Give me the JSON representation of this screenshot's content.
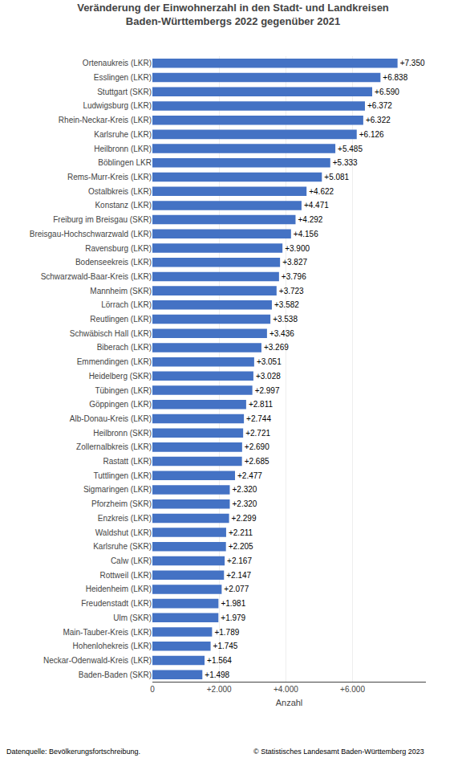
{
  "chart_data": {
    "type": "bar",
    "orientation": "horizontal",
    "title": "Veränderung der Einwohnerzahl in den Stadt- und Landkreisen\nBaden-Württembergs 2022 gegenüber 2021",
    "xlabel": "Anzahl",
    "categories": [
      "Ortenaukreis (LKR)",
      "Esslingen (LKR)",
      "Stuttgart (SKR)",
      "Ludwigsburg (LKR)",
      "Rhein-Neckar-Kreis (LKR)",
      "Karlsruhe (LKR)",
      "Heilbronn (LKR)",
      "Böblingen LKR",
      "Rems-Murr-Kreis (LKR)",
      "Ostalbkreis (LKR)",
      "Konstanz (LKR)",
      "Freiburg im Breisgau (SKR)",
      "Breisgau-Hochschwarzwald (LKR)",
      "Ravensburg (LKR)",
      "Bodenseekreis (LKR)",
      "Schwarzwald-Baar-Kreis (LKR)",
      "Mannheim (SKR)",
      "Lörrach (LKR)",
      "Reutlingen (LKR)",
      "Schwäbisch Hall (LKR)",
      "Biberach (LKR)",
      "Emmendingen (LKR)",
      "Heidelberg (SKR)",
      "Tübingen (LKR)",
      "Göppingen (LKR)",
      "Alb-Donau-Kreis (LKR)",
      "Heilbronn (SKR)",
      "Zollernalbkreis (LKR)",
      "Rastatt (LKR)",
      "Tuttlingen (LKR)",
      "Sigmaringen (LKR)",
      "Pforzheim (SKR)",
      "Enzkreis (LKR)",
      "Waldshut (LKR)",
      "Karlsruhe (SKR)",
      "Calw (LKR)",
      "Rottweil (LKR)",
      "Heidenheim (LKR)",
      "Freudenstadt (LKR)",
      "Ulm (SKR)",
      "Main-Tauber-Kreis (LKR)",
      "Hohenlohekreis (LKR)",
      "Neckar-Odenwald-Kreis (LKR)",
      "Baden-Baden (SKR)"
    ],
    "values": [
      7350,
      6838,
      6590,
      6372,
      6322,
      6126,
      5485,
      5333,
      5081,
      4622,
      4471,
      4292,
      4156,
      3900,
      3827,
      3796,
      3723,
      3582,
      3538,
      3436,
      3269,
      3051,
      3028,
      2997,
      2811,
      2744,
      2721,
      2690,
      2685,
      2477,
      2320,
      2320,
      2299,
      2211,
      2205,
      2167,
      2147,
      2077,
      1981,
      1979,
      1789,
      1745,
      1564,
      1498
    ],
    "value_labels": [
      "+7.350",
      "+6.838",
      "+6.590",
      "+6.372",
      "+6.322",
      "+6.126",
      "+5.485",
      "+5.333",
      "+5.081",
      "+4.622",
      "+4.471",
      "+4.292",
      "+4.156",
      "+3.900",
      "+3.827",
      "+3.796",
      "+3.723",
      "+3.582",
      "+3.538",
      "+3.436",
      "+3.269",
      "+3.051",
      "+3.028",
      "+2.997",
      "+2.811",
      "+2.744",
      "+2.721",
      "+2.690",
      "+2.685",
      "+2.477",
      "+2.320",
      "+2.320",
      "+2.299",
      "+2.211",
      "+2.205",
      "+2.167",
      "+2.147",
      "+2.077",
      "+1.981",
      "+1.979",
      "+1.789",
      "+1.745",
      "+1.564",
      "+1.498"
    ],
    "data_labels": true,
    "color": "#4472C4",
    "xlim": [
      0,
      8200
    ],
    "xticks": [
      0,
      {
        "value": 2000,
        "label": "+2.000"
      },
      {
        "value": 4000,
        "label": "+4.000"
      },
      {
        "value": 6000,
        "label": "+6.000"
      }
    ],
    "grid": true,
    "annotations": [
      "Datenquelle: Bevölkerungsfortschreibung.",
      "© Statistisches Landesamt Baden-Württemberg 2023"
    ]
  }
}
